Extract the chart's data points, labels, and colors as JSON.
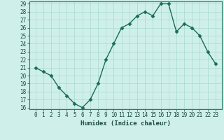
{
  "xlabel": "Humidex (Indice chaleur)",
  "x": [
    0,
    1,
    2,
    3,
    4,
    5,
    6,
    7,
    8,
    9,
    10,
    11,
    12,
    13,
    14,
    15,
    16,
    17,
    18,
    19,
    20,
    21,
    22,
    23
  ],
  "y": [
    21,
    20.5,
    20,
    18.5,
    17.5,
    16.5,
    16,
    17,
    19,
    22,
    24,
    26,
    26.5,
    27.5,
    28,
    27.5,
    29,
    29,
    25.5,
    26.5,
    26,
    25,
    23,
    21.5
  ],
  "line_color": "#1a6b5a",
  "marker": "D",
  "markersize": 2.5,
  "linewidth": 1.0,
  "bg_color": "#cff0ea",
  "grid_color": "#a8d8d0",
  "ylim_min": 16,
  "ylim_max": 29,
  "yticks": [
    16,
    17,
    18,
    19,
    20,
    21,
    22,
    23,
    24,
    25,
    26,
    27,
    28,
    29
  ],
  "xticks": [
    0,
    1,
    2,
    3,
    4,
    5,
    6,
    7,
    8,
    9,
    10,
    11,
    12,
    13,
    14,
    15,
    16,
    17,
    18,
    19,
    20,
    21,
    22,
    23
  ],
  "tick_fontsize": 5.5,
  "label_fontsize": 6.5,
  "tick_color": "#1a4a42",
  "spine_color": "#2a7a6a"
}
